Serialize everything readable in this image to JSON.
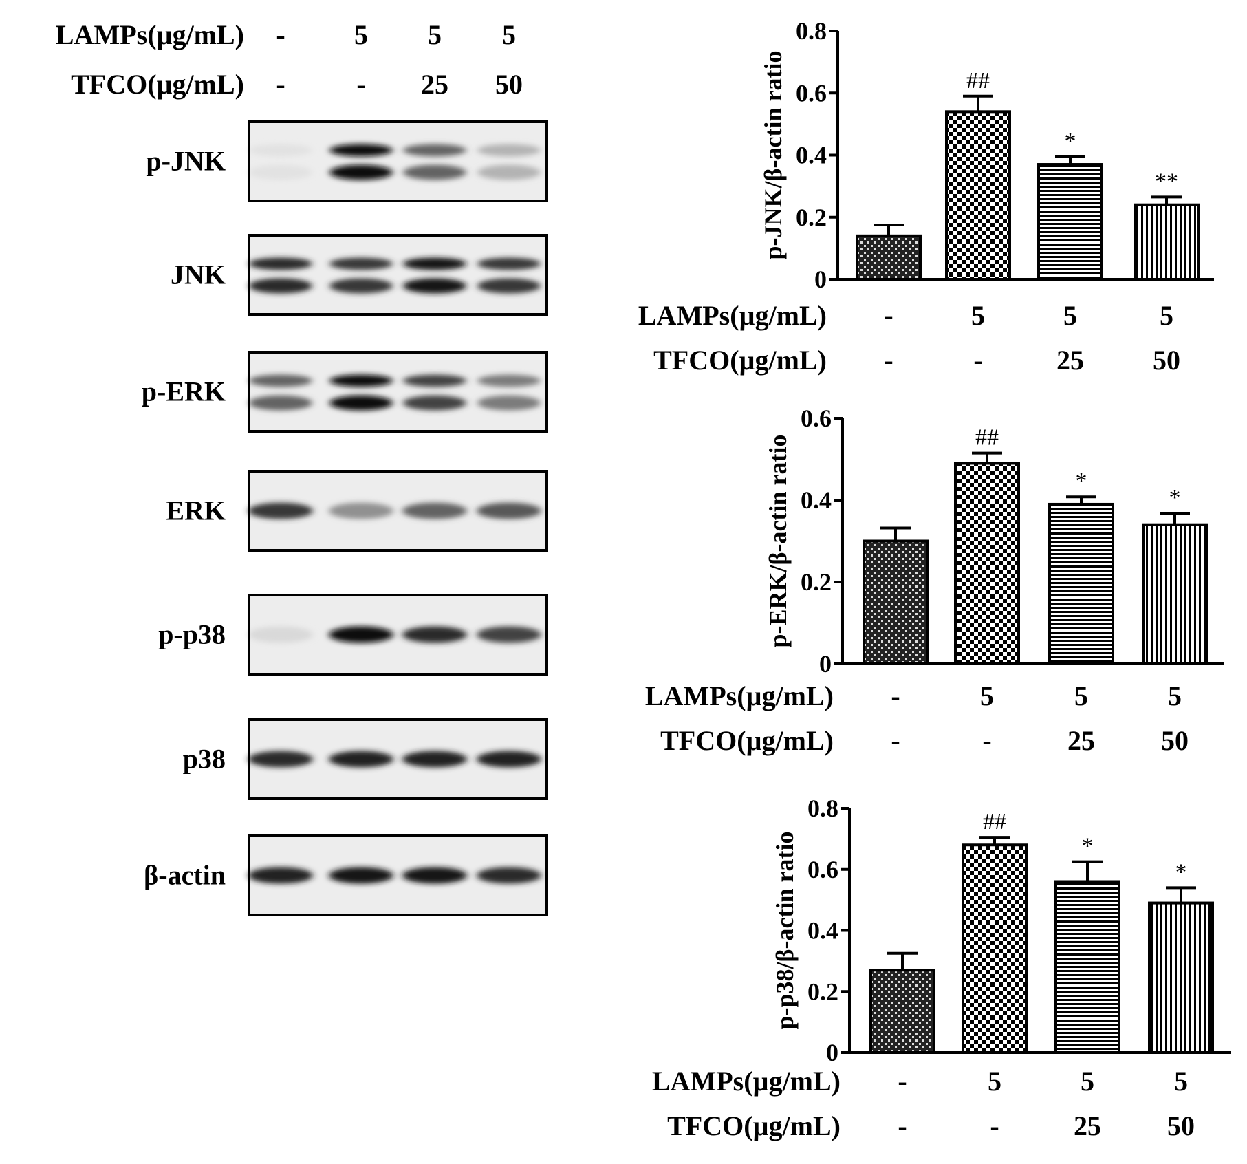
{
  "conditions": {
    "row1_label": "LAMPs(µg/mL)",
    "row2_label": "TFCO(µg/mL)",
    "row1_values": [
      "-",
      "5",
      "5",
      "5"
    ],
    "row2_values": [
      "-",
      "-",
      "25",
      "50"
    ]
  },
  "blot": {
    "panels": [
      {
        "label": "p-JNK",
        "intensity": [
          0.04,
          1.0,
          0.6,
          0.25
        ],
        "double_band": true
      },
      {
        "label": "JNK",
        "intensity": [
          0.85,
          0.8,
          0.95,
          0.8
        ],
        "double_band": true
      },
      {
        "label": "p-ERK",
        "intensity": [
          0.6,
          1.0,
          0.75,
          0.5
        ],
        "double_band": true
      },
      {
        "label": "ERK",
        "intensity": [
          0.8,
          0.4,
          0.6,
          0.65
        ],
        "double_band": false
      },
      {
        "label": "p-p38",
        "intensity": [
          0.08,
          1.0,
          0.85,
          0.75
        ],
        "double_band": false
      },
      {
        "label": "p38",
        "intensity": [
          0.85,
          0.9,
          0.9,
          0.9
        ],
        "double_band": false
      },
      {
        "label": "β-actin",
        "intensity": [
          0.9,
          0.95,
          0.95,
          0.85
        ],
        "double_band": false
      }
    ]
  },
  "chart_data": [
    {
      "type": "bar",
      "ylabel": "p-JNK/β-actin ratio",
      "ylim": [
        0,
        0.8
      ],
      "yticks": [
        "0",
        "0.2",
        "0.4",
        "0.6",
        "0.8"
      ],
      "values": [
        0.14,
        0.54,
        0.37,
        0.24
      ],
      "errors": [
        0.035,
        0.05,
        0.025,
        0.025
      ],
      "annotations": [
        "",
        "##",
        "*",
        "**"
      ],
      "patterns": [
        "dots",
        "checker",
        "hlines",
        "vlines"
      ]
    },
    {
      "type": "bar",
      "ylabel": "p-ERK/β-actin ratio",
      "ylim": [
        0,
        0.6
      ],
      "yticks": [
        "0",
        "0.2",
        "0.4",
        "0.6"
      ],
      "values": [
        0.3,
        0.49,
        0.39,
        0.34
      ],
      "errors": [
        0.032,
        0.025,
        0.018,
        0.028
      ],
      "annotations": [
        "",
        "##",
        "*",
        "*"
      ],
      "patterns": [
        "dots",
        "checker",
        "hlines",
        "vlines"
      ]
    },
    {
      "type": "bar",
      "ylabel": "p-p38/β-actin ratio",
      "ylim": [
        0,
        0.8
      ],
      "yticks": [
        "0",
        "0.2",
        "0.4",
        "0.6",
        "0.8"
      ],
      "values": [
        0.27,
        0.68,
        0.56,
        0.49
      ],
      "errors": [
        0.055,
        0.025,
        0.065,
        0.05
      ],
      "annotations": [
        "",
        "##",
        "*",
        "*"
      ],
      "patterns": [
        "dots",
        "checker",
        "hlines",
        "vlines"
      ]
    }
  ]
}
